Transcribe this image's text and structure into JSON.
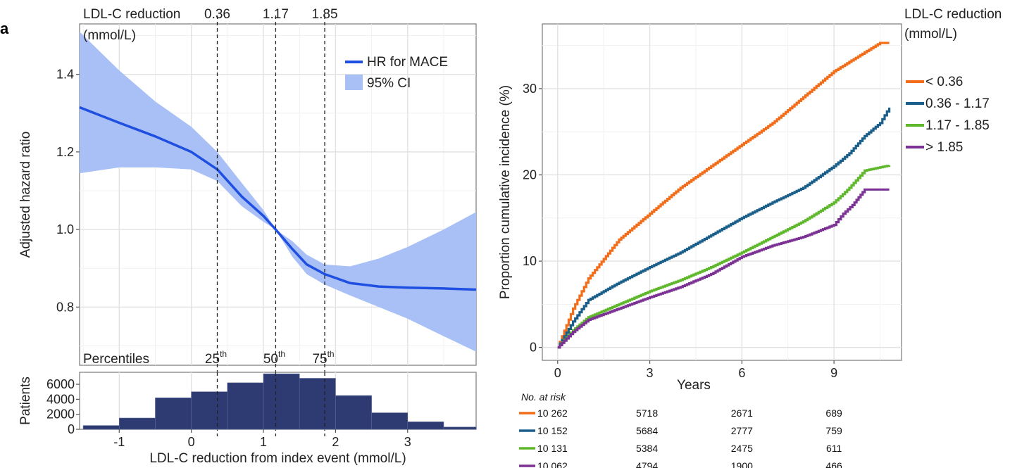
{
  "chart_data": [
    {
      "type": "line",
      "panel": "left-top",
      "ylabel": "Adjusted hazard ratio",
      "xlim": [
        -1.55,
        3.95
      ],
      "ylim": [
        0.65,
        1.53
      ],
      "yticks": [
        0.8,
        1.0,
        1.2,
        1.4
      ],
      "ytick_labels": [
        "0.8",
        "1.0",
        "1.2",
        "1.4"
      ],
      "grid": true,
      "legend": {
        "position": "top-right",
        "entries": [
          "HR for MACE",
          "95% CI"
        ]
      },
      "series": [
        {
          "name": "HR for MACE",
          "color": "#1f4fe0",
          "x": [
            -1.55,
            -1.0,
            -0.5,
            0.0,
            0.36,
            0.7,
            1.0,
            1.17,
            1.4,
            1.6,
            1.85,
            2.2,
            2.6,
            3.0,
            3.5,
            3.95
          ],
          "y": [
            1.315,
            1.275,
            1.24,
            1.2,
            1.155,
            1.085,
            1.035,
            1.0,
            0.95,
            0.91,
            0.885,
            0.862,
            0.853,
            0.85,
            0.848,
            0.845
          ]
        },
        {
          "name": "95% CI",
          "color": "#a9c0f7",
          "x": [
            -1.55,
            -1.0,
            -0.5,
            0.0,
            0.36,
            0.7,
            1.0,
            1.17,
            1.4,
            1.6,
            1.85,
            2.2,
            2.6,
            3.0,
            3.5,
            3.95
          ],
          "lower": [
            1.145,
            1.16,
            1.16,
            1.155,
            1.125,
            1.06,
            1.02,
            1.0,
            0.93,
            0.885,
            0.858,
            0.83,
            0.8,
            0.77,
            0.725,
            0.685
          ],
          "upper": [
            1.51,
            1.41,
            1.33,
            1.265,
            1.2,
            1.12,
            1.05,
            1.0,
            0.97,
            0.935,
            0.91,
            0.905,
            0.925,
            0.955,
            1.0,
            1.045
          ]
        }
      ],
      "reference_lines": [
        {
          "x": 0.36,
          "top_label": "0.36",
          "percentile_label": "25",
          "suffix": "th"
        },
        {
          "x": 1.17,
          "top_label": "1.17",
          "percentile_label": "50",
          "suffix": "th"
        },
        {
          "x": 1.85,
          "top_label": "1.85",
          "percentile_label": "75",
          "suffix": "th"
        }
      ],
      "annotations": {
        "top_left_line1": "LDL-C reduction",
        "top_left_line2": "(mmol/L)",
        "bottom_left": "Percentiles"
      }
    },
    {
      "type": "bar",
      "panel": "left-bottom",
      "xlabel": "LDL-C reduction from index event (mmol/L)",
      "ylabel": "Patients",
      "xlim": [
        -1.55,
        3.95
      ],
      "ylim": [
        0,
        7600
      ],
      "xticks": [
        -1,
        0,
        1,
        2,
        3
      ],
      "xtick_labels": [
        "-1",
        "0",
        "1",
        "2",
        "3"
      ],
      "yticks": [
        0,
        2000,
        4000,
        6000
      ],
      "ytick_labels": [
        "0",
        "2000",
        "4000",
        "6000"
      ],
      "bar_color": "#2e3b73",
      "bins": [
        {
          "start": -1.5,
          "end": -1.0,
          "value": 500
        },
        {
          "start": -1.0,
          "end": -0.5,
          "value": 1500
        },
        {
          "start": -0.5,
          "end": 0.0,
          "value": 4200
        },
        {
          "start": 0.0,
          "end": 0.5,
          "value": 5000
        },
        {
          "start": 0.5,
          "end": 1.0,
          "value": 6200
        },
        {
          "start": 1.0,
          "end": 1.5,
          "value": 7400
        },
        {
          "start": 1.5,
          "end": 2.0,
          "value": 6800
        },
        {
          "start": 2.0,
          "end": 2.5,
          "value": 4500
        },
        {
          "start": 2.5,
          "end": 3.0,
          "value": 2200
        },
        {
          "start": 3.0,
          "end": 3.5,
          "value": 1000
        },
        {
          "start": 3.5,
          "end": 3.95,
          "value": 300
        }
      ]
    },
    {
      "type": "line",
      "panel": "right",
      "xlabel": "Years",
      "ylabel": "Proportion cumulative incidence (%)",
      "xlim": [
        -0.5,
        11.2
      ],
      "ylim": [
        -1.5,
        37.5
      ],
      "xticks": [
        0,
        3,
        6,
        9
      ],
      "xtick_labels": [
        "0",
        "3",
        "6",
        "9"
      ],
      "yticks": [
        0,
        10,
        20,
        30
      ],
      "ytick_labels": [
        "0",
        "10",
        "20",
        "30"
      ],
      "grid": true,
      "legend": {
        "position": "right",
        "title_line1": "LDL-C reduction",
        "title_line2": "(mmol/L)"
      },
      "series": [
        {
          "name": "< 0.36",
          "color": "#f26d1a",
          "x": [
            0,
            0.5,
            1,
            2,
            3,
            4,
            5,
            6,
            7,
            8,
            9,
            10,
            10.5,
            10.8
          ],
          "y": [
            0,
            4.5,
            8,
            12.5,
            15.5,
            18.5,
            21,
            23.5,
            26,
            29,
            32,
            34.2,
            35.3,
            35.3
          ]
        },
        {
          "name": "0.36 - 1.17",
          "color": "#1a5f8a",
          "x": [
            0,
            0.5,
            1,
            2,
            3,
            4,
            5,
            6,
            7,
            8,
            9,
            9.5,
            10,
            10.5,
            10.8
          ],
          "y": [
            0,
            3,
            5.5,
            7.5,
            9.3,
            11,
            13,
            15,
            16.8,
            18.5,
            21,
            22.5,
            24.5,
            26,
            27.8
          ]
        },
        {
          "name": "1.17 - 1.85",
          "color": "#5fb82b",
          "x": [
            0,
            0.5,
            1,
            2,
            3,
            4,
            5,
            6,
            7,
            8,
            9,
            9.5,
            10,
            10.8
          ],
          "y": [
            0,
            2,
            3.5,
            5,
            6.5,
            7.8,
            9.3,
            11,
            12.8,
            14.6,
            16.8,
            18.5,
            20.5,
            21.1
          ]
        },
        {
          "name": "> 1.85",
          "color": "#7b3294",
          "x": [
            0,
            0.5,
            1,
            2,
            3,
            4,
            5,
            6,
            7,
            8,
            9,
            9.3,
            9.6,
            10,
            10.8
          ],
          "y": [
            0,
            1.8,
            3.2,
            4.5,
            5.8,
            7,
            8.5,
            10.5,
            11.8,
            12.8,
            14.2,
            15.5,
            16.5,
            18.3,
            18.3
          ]
        }
      ],
      "risk_table": {
        "title": "No. at risk",
        "rows": [
          {
            "color": "#f26d1a",
            "values": [
              "10 262",
              "5718",
              "2671",
              "689"
            ]
          },
          {
            "color": "#1a5f8a",
            "values": [
              "10 152",
              "5684",
              "2777",
              "759"
            ]
          },
          {
            "color": "#5fb82b",
            "values": [
              "10 131",
              "5384",
              "2475",
              "611"
            ]
          },
          {
            "color": "#7b3294",
            "values": [
              "10 062",
              "4794",
              "1900",
              "466"
            ]
          }
        ]
      }
    }
  ],
  "panel_letter": "a"
}
